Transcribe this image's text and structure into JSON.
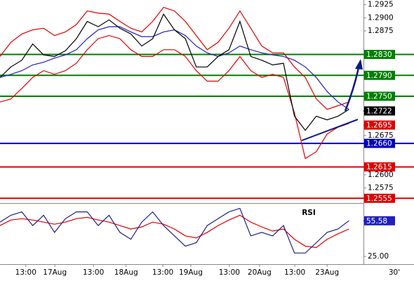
{
  "chart_data": [
    {
      "type": "line",
      "x": [
        0,
        3,
        6,
        9,
        12,
        15,
        18,
        21,
        24,
        27,
        30,
        33,
        36,
        39,
        42,
        45,
        48,
        51,
        54,
        57,
        60,
        63,
        66,
        69,
        72,
        75,
        78,
        81,
        84,
        87,
        90,
        93,
        96
      ],
      "xlim": [
        0,
        100
      ],
      "xticks": [
        {
          "value": 7.1,
          "label": "13:00"
        },
        {
          "value": 15.1,
          "label": "17Aug"
        },
        {
          "value": 25.7,
          "label": "13:00"
        },
        {
          "value": 34.7,
          "label": "18Aug"
        },
        {
          "value": 44.8,
          "label": "13:00"
        },
        {
          "value": 52.5,
          "label": "19Aug"
        },
        {
          "value": 63.1,
          "label": "13:00"
        },
        {
          "value": 71.4,
          "label": "20Aug"
        },
        {
          "value": 81.1,
          "label": "13:00"
        },
        {
          "value": 90,
          "label": "23Aug"
        }
      ],
      "interval_label": "30'",
      "ylim": [
        1.2546,
        1.2934
      ],
      "yticks": [
        {
          "value": 1.2925,
          "label": "1.2925"
        },
        {
          "value": 1.29,
          "label": "1.2900"
        },
        {
          "value": 1.2875,
          "label": "1.2875"
        },
        {
          "value": 1.2675,
          "label": "1.2675"
        },
        {
          "value": 1.26,
          "label": "1.2600"
        },
        {
          "value": 1.2575,
          "label": "1.2575"
        }
      ],
      "series": [
        {
          "color": "#e00000",
          "values": [
            1.2826,
            1.2853,
            1.2869,
            1.2877,
            1.288,
            1.2866,
            1.2873,
            1.2887,
            1.2913,
            1.2909,
            1.2907,
            1.2893,
            1.288,
            1.2873,
            1.2893,
            1.292,
            1.2913,
            1.2893,
            1.2866,
            1.2839,
            1.2853,
            1.288,
            1.2913,
            1.288,
            1.2846,
            1.2833,
            1.2833,
            1.2806,
            1.2786,
            1.2745,
            1.2725,
            1.2732,
            1.2739
          ]
        },
        {
          "color": "#e00000",
          "values": [
            1.2739,
            1.2745,
            1.2765,
            1.2786,
            1.2799,
            1.2792,
            1.2799,
            1.2813,
            1.2839,
            1.286,
            1.2866,
            1.286,
            1.2839,
            1.2826,
            1.2826,
            1.2839,
            1.2839,
            1.2826,
            1.2799,
            1.2779,
            1.2779,
            1.2799,
            1.2826,
            1.2799,
            1.2786,
            1.2792,
            1.2786,
            1.2718,
            1.2631,
            1.2644,
            1.2678,
            1.2691,
            1.2698
          ]
        },
        {
          "color": "#2020c0",
          "values": [
            1.2786,
            1.2792,
            1.2799,
            1.281,
            1.2815,
            1.2823,
            1.2829,
            1.2839,
            1.286,
            1.2877,
            1.2883,
            1.2883,
            1.2873,
            1.2864,
            1.2864,
            1.2873,
            1.2877,
            1.2866,
            1.2846,
            1.2833,
            1.2826,
            1.2833,
            1.2846,
            1.2839,
            1.2833,
            1.2829,
            1.2826,
            1.2819,
            1.2806,
            1.2786,
            1.2759,
            1.2739,
            1.2725
          ]
        },
        {
          "color": "#000000",
          "values": [
            1.2786,
            1.2806,
            1.2819,
            1.285,
            1.2829,
            1.2826,
            1.2837,
            1.286,
            1.2893,
            1.2883,
            1.2896,
            1.288,
            1.2869,
            1.2846,
            1.286,
            1.2907,
            1.2877,
            1.286,
            1.2806,
            1.2806,
            1.2826,
            1.2839,
            1.2893,
            1.2826,
            1.2819,
            1.281,
            1.2813,
            1.2712,
            1.2685,
            1.2712,
            1.2705,
            1.2712,
            1.2725
          ]
        }
      ],
      "levels": [
        {
          "value": 1.283,
          "label": "1.2830",
          "color": "#008000"
        },
        {
          "value": 1.279,
          "label": "1.2790",
          "color": "#008000"
        },
        {
          "value": 1.275,
          "label": "1.2750",
          "color": "#008000"
        },
        {
          "value": 1.266,
          "label": "1.2660",
          "color": "#0000c0"
        },
        {
          "value": 1.2615,
          "label": "1.2615",
          "color": "#e00000"
        },
        {
          "value": 1.2555,
          "label": "1.2555",
          "color": "#e00000"
        }
      ],
      "markers": [
        {
          "value": 1.2722,
          "label": "1.2722",
          "color": "#000000"
        },
        {
          "value": 1.2695,
          "label": "1.2695",
          "color": "#e00000"
        }
      ]
    },
    {
      "type": "line",
      "title": "RSI",
      "x": [
        0,
        3,
        6,
        9,
        12,
        15,
        18,
        21,
        24,
        27,
        30,
        33,
        36,
        39,
        42,
        45,
        48,
        51,
        54,
        57,
        60,
        63,
        66,
        69,
        72,
        75,
        78,
        81,
        84,
        87,
        90,
        93,
        96
      ],
      "xlim": [
        0,
        100
      ],
      "ylim": [
        19,
        69
      ],
      "yticks": [
        {
          "value": 25,
          "label": "25.00"
        }
      ],
      "series": [
        {
          "color": "#e00000",
          "values": [
            51.5,
            56.2,
            57.4,
            56.2,
            54.4,
            52.6,
            54.4,
            57.4,
            58.5,
            56.2,
            54.4,
            51.5,
            48.5,
            50.3,
            54.4,
            52.6,
            48.5,
            42.6,
            40.9,
            45.6,
            51.5,
            56.2,
            60.3,
            54.4,
            50.3,
            46.8,
            48.5,
            39.7,
            33.8,
            32.6,
            39.7,
            44.4,
            48.5
          ]
        },
        {
          "color": "#202080",
          "values": [
            54.4,
            60.3,
            63.2,
            51.5,
            60.3,
            45.6,
            57.4,
            63.2,
            63.2,
            51.5,
            60.3,
            45.6,
            39.7,
            54.4,
            63.2,
            51.5,
            42.6,
            33.8,
            36.8,
            51.5,
            57.4,
            63.2,
            66.2,
            42.6,
            45.6,
            42.6,
            51.5,
            27.9,
            27.9,
            36.8,
            45.6,
            48.5,
            55.6
          ]
        }
      ],
      "markers": [
        {
          "value": 55.58,
          "label": "55.58",
          "color": "#2020c0"
        }
      ]
    }
  ]
}
